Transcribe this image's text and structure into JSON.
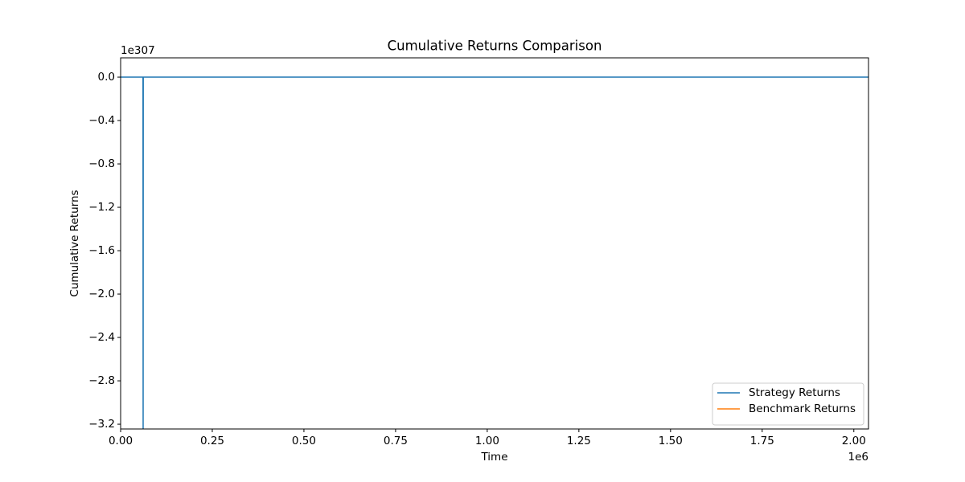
{
  "chart_data": {
    "type": "line",
    "title": "Cumulative Returns Comparison",
    "xlabel": "Time",
    "ylabel": "Cumulative Returns",
    "x_offset_label": "1e6",
    "y_offset_label": "1e307",
    "x": [
      0,
      61000,
      61400,
      61800,
      2040000
    ],
    "series": [
      {
        "name": "Strategy Returns",
        "color": "#1f77b4",
        "values": [
          0,
          0,
          -3.3e+307,
          0,
          0
        ]
      },
      {
        "name": "Benchmark Returns",
        "color": "#ff7f0e",
        "values": [
          null,
          null,
          null,
          null,
          null
        ]
      }
    ],
    "xlim": [
      0,
      2040000
    ],
    "ylim": [
      -3.244e+307,
      1.78e+306
    ],
    "xticks": [
      {
        "value": 0,
        "label": "0.00"
      },
      {
        "value": 250000,
        "label": "0.25"
      },
      {
        "value": 500000,
        "label": "0.50"
      },
      {
        "value": 750000,
        "label": "0.75"
      },
      {
        "value": 1000000,
        "label": "1.00"
      },
      {
        "value": 1250000,
        "label": "1.25"
      },
      {
        "value": 1500000,
        "label": "1.50"
      },
      {
        "value": 1750000,
        "label": "1.75"
      },
      {
        "value": 2000000,
        "label": "2.00"
      }
    ],
    "yticks": [
      {
        "value": 0,
        "label": "0.0"
      },
      {
        "value": -4e+306,
        "label": "−0.4"
      },
      {
        "value": -8e+306,
        "label": "−0.8"
      },
      {
        "value": -1.2e+307,
        "label": "−1.2"
      },
      {
        "value": -1.6e+307,
        "label": "−1.6"
      },
      {
        "value": -2e+307,
        "label": "−2.0"
      },
      {
        "value": -2.4e+307,
        "label": "−2.4"
      },
      {
        "value": -2.8e+307,
        "label": "−2.8"
      },
      {
        "value": -3.2e+307,
        "label": "−3.2"
      }
    ],
    "legend": "lower right",
    "grid": false
  }
}
